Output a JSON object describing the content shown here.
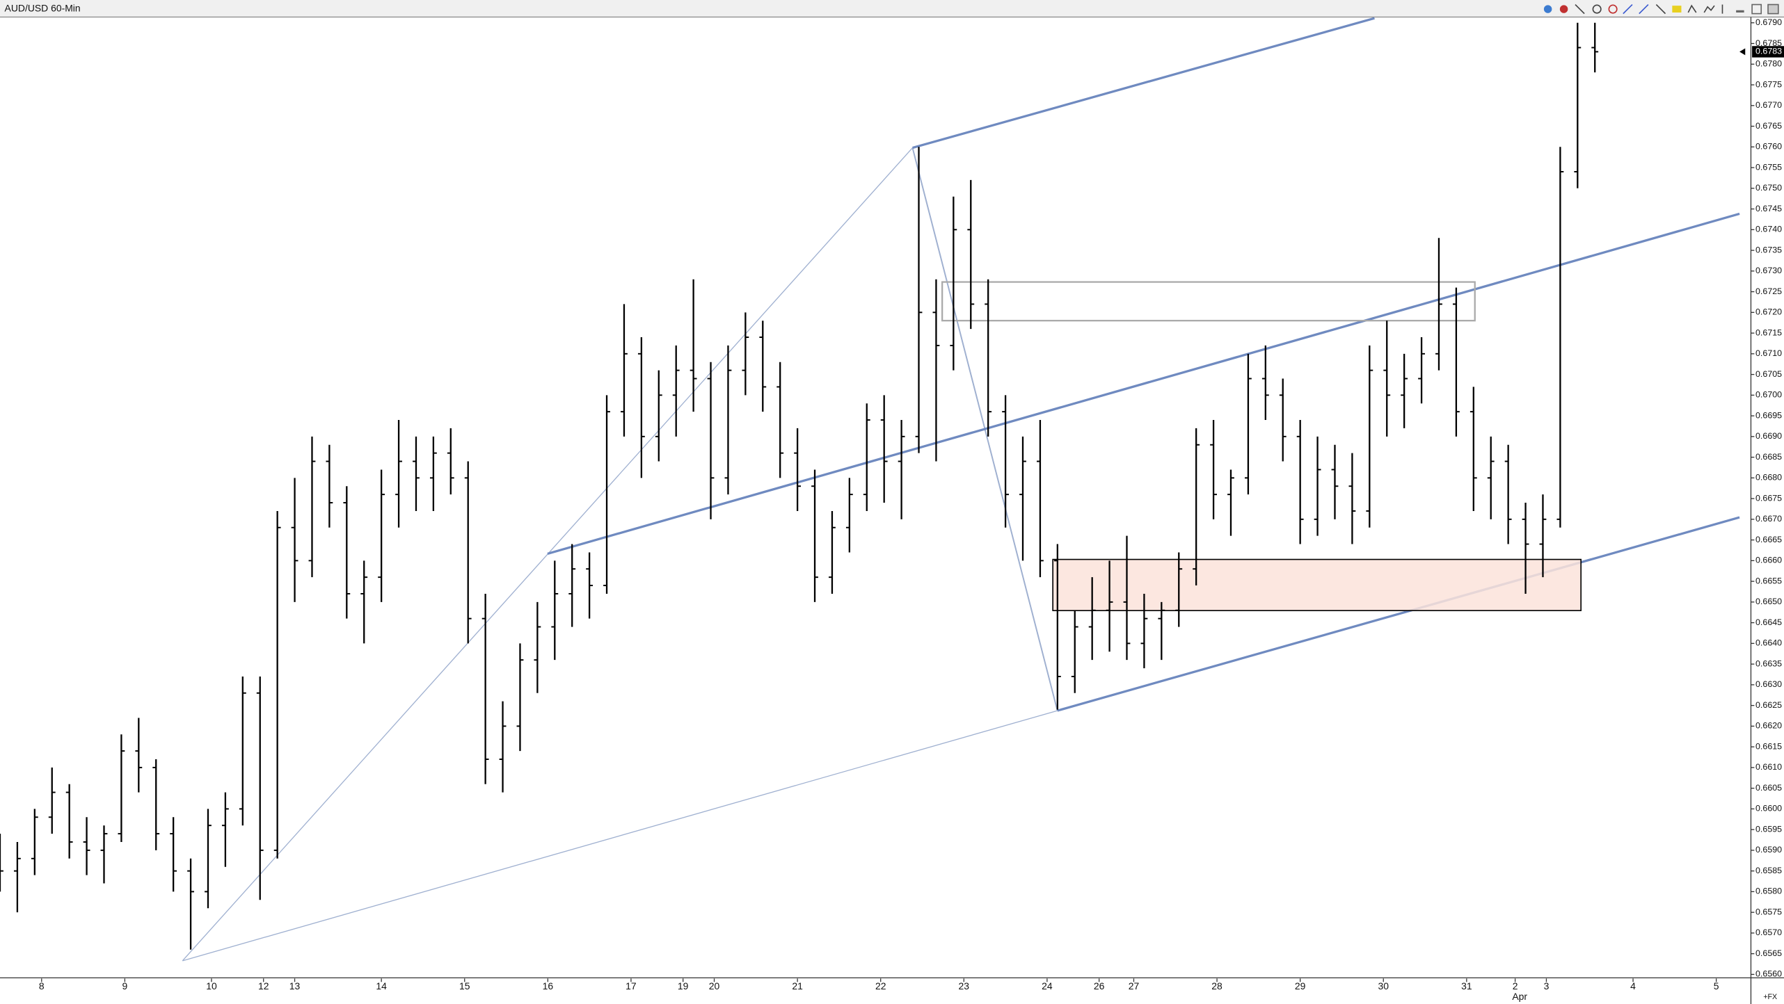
{
  "chart_data": {
    "type": "ohlc",
    "title": "AUD/USD 60-Min",
    "source_label": "+FX",
    "last_price_label": "0.6783",
    "color": "#000000",
    "xlim": [
      0,
      505
    ],
    "ylim": [
      0.6559,
      0.6791
    ],
    "xticks": [
      {
        "value": 12,
        "label": "8"
      },
      {
        "value": 36,
        "label": "9"
      },
      {
        "value": 61,
        "label": "10"
      },
      {
        "value": 76,
        "label": "12"
      },
      {
        "value": 85,
        "label": "13"
      },
      {
        "value": 110,
        "label": "14"
      },
      {
        "value": 134,
        "label": "15"
      },
      {
        "value": 158,
        "label": "16"
      },
      {
        "value": 182,
        "label": "17"
      },
      {
        "value": 197,
        "label": "19"
      },
      {
        "value": 206,
        "label": "20"
      },
      {
        "value": 230,
        "label": "21"
      },
      {
        "value": 254,
        "label": "22"
      },
      {
        "value": 278,
        "label": "23"
      },
      {
        "value": 302,
        "label": "24"
      },
      {
        "value": 317,
        "label": "26"
      },
      {
        "value": 327,
        "label": "27"
      },
      {
        "value": 351,
        "label": "28"
      },
      {
        "value": 375,
        "label": "29"
      },
      {
        "value": 399,
        "label": "30"
      },
      {
        "value": 423,
        "label": "31"
      },
      {
        "value": 437,
        "label": "2",
        "month": "Apr"
      },
      {
        "value": 446,
        "label": "3"
      },
      {
        "value": 471,
        "label": "4"
      },
      {
        "value": 495,
        "label": "5"
      }
    ],
    "yticks": [
      {
        "value": 0.656,
        "label": "0.6560"
      },
      {
        "value": 0.6565,
        "label": "0.6565"
      },
      {
        "value": 0.657,
        "label": "0.6570"
      },
      {
        "value": 0.6575,
        "label": "0.6575"
      },
      {
        "value": 0.658,
        "label": "0.6580"
      },
      {
        "value": 0.6585,
        "label": "0.6585"
      },
      {
        "value": 0.659,
        "label": "0.6590"
      },
      {
        "value": 0.6595,
        "label": "0.6595"
      },
      {
        "value": 0.66,
        "label": "0.6600"
      },
      {
        "value": 0.6605,
        "label": "0.6605"
      },
      {
        "value": 0.661,
        "label": "0.6610"
      },
      {
        "value": 0.6615,
        "label": "0.6615"
      },
      {
        "value": 0.662,
        "label": "0.6620"
      },
      {
        "value": 0.6625,
        "label": "0.6625"
      },
      {
        "value": 0.663,
        "label": "0.6630"
      },
      {
        "value": 0.6635,
        "label": "0.6635"
      },
      {
        "value": 0.664,
        "label": "0.6640"
      },
      {
        "value": 0.6645,
        "label": "0.6645"
      },
      {
        "value": 0.665,
        "label": "0.6650"
      },
      {
        "value": 0.6655,
        "label": "0.6655"
      },
      {
        "value": 0.666,
        "label": "0.6660"
      },
      {
        "value": 0.6665,
        "label": "0.6665"
      },
      {
        "value": 0.667,
        "label": "0.6670"
      },
      {
        "value": 0.6675,
        "label": "0.6675"
      },
      {
        "value": 0.668,
        "label": "0.6680"
      },
      {
        "value": 0.6685,
        "label": "0.6685"
      },
      {
        "value": 0.669,
        "label": "0.6690"
      },
      {
        "value": 0.6695,
        "label": "0.6695"
      },
      {
        "value": 0.67,
        "label": "0.6700"
      },
      {
        "value": 0.6705,
        "label": "0.6705"
      },
      {
        "value": 0.671,
        "label": "0.6710"
      },
      {
        "value": 0.6715,
        "label": "0.6715"
      },
      {
        "value": 0.672,
        "label": "0.6720"
      },
      {
        "value": 0.6725,
        "label": "0.6725"
      },
      {
        "value": 0.673,
        "label": "0.6730"
      },
      {
        "value": 0.6735,
        "label": "0.6735"
      },
      {
        "value": 0.674,
        "label": "0.6740"
      },
      {
        "value": 0.6745,
        "label": "0.6745"
      },
      {
        "value": 0.675,
        "label": "0.6750"
      },
      {
        "value": 0.6755,
        "label": "0.6755"
      },
      {
        "value": 0.676,
        "label": "0.6760"
      },
      {
        "value": 0.6765,
        "label": "0.6765"
      },
      {
        "value": 0.677,
        "label": "0.6770"
      },
      {
        "value": 0.6775,
        "label": "0.6775"
      },
      {
        "value": 0.678,
        "label": "0.6780"
      },
      {
        "value": 0.6785,
        "label": "0.6785"
      },
      {
        "value": 0.679,
        "label": "0.6790"
      }
    ],
    "x": [
      0,
      5,
      10,
      15,
      20,
      25,
      30,
      35,
      40,
      45,
      50,
      55,
      60,
      65,
      70,
      75,
      80,
      85,
      90,
      95,
      100,
      105,
      110,
      115,
      120,
      125,
      130,
      135,
      140,
      145,
      150,
      155,
      160,
      165,
      170,
      175,
      180,
      185,
      190,
      195,
      200,
      205,
      210,
      215,
      220,
      225,
      230,
      235,
      240,
      245,
      250,
      255,
      260,
      265,
      270,
      275,
      280,
      285,
      290,
      295,
      300,
      305,
      310,
      315,
      320,
      325,
      330,
      335,
      340,
      345,
      350,
      355,
      360,
      365,
      370,
      375,
      380,
      385,
      390,
      395,
      400,
      405,
      410,
      415,
      420,
      425,
      430,
      435,
      440,
      445,
      450,
      455,
      460
    ],
    "open": [
      0.659,
      0.6585,
      0.6588,
      0.6598,
      0.6604,
      0.6592,
      0.659,
      0.6594,
      0.6614,
      0.661,
      0.6594,
      0.6585,
      0.658,
      0.6596,
      0.66,
      0.6628,
      0.659,
      0.6668,
      0.666,
      0.6684,
      0.6674,
      0.6652,
      0.6656,
      0.6676,
      0.6684,
      0.668,
      0.6686,
      0.668,
      0.6646,
      0.6612,
      0.662,
      0.6636,
      0.6644,
      0.6652,
      0.6658,
      0.6654,
      0.6696,
      0.671,
      0.669,
      0.67,
      0.6706,
      0.6704,
      0.668,
      0.6706,
      0.6714,
      0.6702,
      0.6686,
      0.6678,
      0.6656,
      0.6668,
      0.6676,
      0.6694,
      0.6684,
      0.669,
      0.672,
      0.6712,
      0.674,
      0.6722,
      0.6696,
      0.6676,
      0.6684,
      0.666,
      0.6632,
      0.6644,
      0.6648,
      0.665,
      0.664,
      0.6646,
      0.6648,
      0.6658,
      0.6688,
      0.6676,
      0.668,
      0.6704,
      0.67,
      0.669,
      0.667,
      0.6682,
      0.6678,
      0.6672,
      0.6706,
      0.67,
      0.6704,
      0.671,
      0.6722,
      0.6696,
      0.668,
      0.6684,
      0.667,
      0.6664,
      0.667,
      0.6754,
      0.6784
    ],
    "high": [
      0.6594,
      0.6592,
      0.66,
      0.661,
      0.6606,
      0.6598,
      0.6596,
      0.6618,
      0.6622,
      0.6612,
      0.6598,
      0.6588,
      0.66,
      0.6604,
      0.6632,
      0.6632,
      0.6672,
      0.668,
      0.669,
      0.6688,
      0.6678,
      0.666,
      0.6682,
      0.6694,
      0.669,
      0.669,
      0.6692,
      0.6684,
      0.6652,
      0.6626,
      0.664,
      0.665,
      0.666,
      0.6664,
      0.6662,
      0.67,
      0.6722,
      0.6714,
      0.6706,
      0.6712,
      0.6728,
      0.6708,
      0.6712,
      0.672,
      0.6718,
      0.6708,
      0.6692,
      0.6682,
      0.6672,
      0.668,
      0.6698,
      0.67,
      0.6694,
      0.676,
      0.6728,
      0.6748,
      0.6752,
      0.6728,
      0.67,
      0.669,
      0.6694,
      0.6664,
      0.6648,
      0.6656,
      0.666,
      0.6666,
      0.6652,
      0.665,
      0.6662,
      0.6692,
      0.6694,
      0.6682,
      0.671,
      0.6712,
      0.6704,
      0.6694,
      0.669,
      0.6688,
      0.6686,
      0.6712,
      0.6718,
      0.671,
      0.6714,
      0.6738,
      0.6726,
      0.6702,
      0.669,
      0.6688,
      0.6674,
      0.6676,
      0.676,
      0.679,
      0.679
    ],
    "low": [
      0.658,
      0.6575,
      0.6584,
      0.6594,
      0.6588,
      0.6584,
      0.6582,
      0.6592,
      0.6604,
      0.659,
      0.658,
      0.6566,
      0.6576,
      0.6586,
      0.6596,
      0.6578,
      0.6588,
      0.665,
      0.6656,
      0.6668,
      0.6646,
      0.664,
      0.665,
      0.6668,
      0.6672,
      0.6672,
      0.6676,
      0.664,
      0.6606,
      0.6604,
      0.6614,
      0.6628,
      0.6636,
      0.6644,
      0.6646,
      0.6652,
      0.669,
      0.668,
      0.6684,
      0.669,
      0.6696,
      0.667,
      0.6676,
      0.67,
      0.6696,
      0.668,
      0.6672,
      0.665,
      0.6652,
      0.6662,
      0.6672,
      0.6674,
      0.667,
      0.6686,
      0.6684,
      0.6706,
      0.6716,
      0.669,
      0.6668,
      0.666,
      0.6656,
      0.6624,
      0.6628,
      0.6636,
      0.6638,
      0.6636,
      0.6634,
      0.6636,
      0.6644,
      0.6654,
      0.667,
      0.6666,
      0.6676,
      0.6694,
      0.6684,
      0.6664,
      0.6666,
      0.667,
      0.6664,
      0.6668,
      0.669,
      0.6692,
      0.6698,
      0.6706,
      0.669,
      0.6672,
      0.667,
      0.6664,
      0.6652,
      0.6656,
      0.6668,
      0.675,
      0.6778
    ],
    "close": [
      0.6585,
      0.6588,
      0.6598,
      0.6604,
      0.6592,
      0.659,
      0.6594,
      0.6614,
      0.661,
      0.6594,
      0.6585,
      0.658,
      0.6596,
      0.66,
      0.6628,
      0.659,
      0.6668,
      0.666,
      0.6684,
      0.6674,
      0.6652,
      0.6656,
      0.6676,
      0.6684,
      0.668,
      0.6686,
      0.668,
      0.6646,
      0.6612,
      0.662,
      0.6636,
      0.6644,
      0.6652,
      0.6658,
      0.6654,
      0.6696,
      0.671,
      0.669,
      0.67,
      0.6706,
      0.6704,
      0.668,
      0.6706,
      0.6714,
      0.6702,
      0.6686,
      0.6678,
      0.6656,
      0.6668,
      0.6676,
      0.6694,
      0.6684,
      0.669,
      0.672,
      0.6712,
      0.674,
      0.6722,
      0.6696,
      0.6676,
      0.6684,
      0.666,
      0.6632,
      0.6644,
      0.6648,
      0.665,
      0.664,
      0.6646,
      0.6648,
      0.6658,
      0.6688,
      0.6676,
      0.668,
      0.6704,
      0.67,
      0.669,
      0.667,
      0.6682,
      0.6678,
      0.6672,
      0.6706,
      0.67,
      0.6704,
      0.671,
      0.6722,
      0.6696,
      0.668,
      0.6684,
      0.667,
      0.6664,
      0.667,
      0.6754,
      0.6784,
      0.6783
    ]
  }
}
